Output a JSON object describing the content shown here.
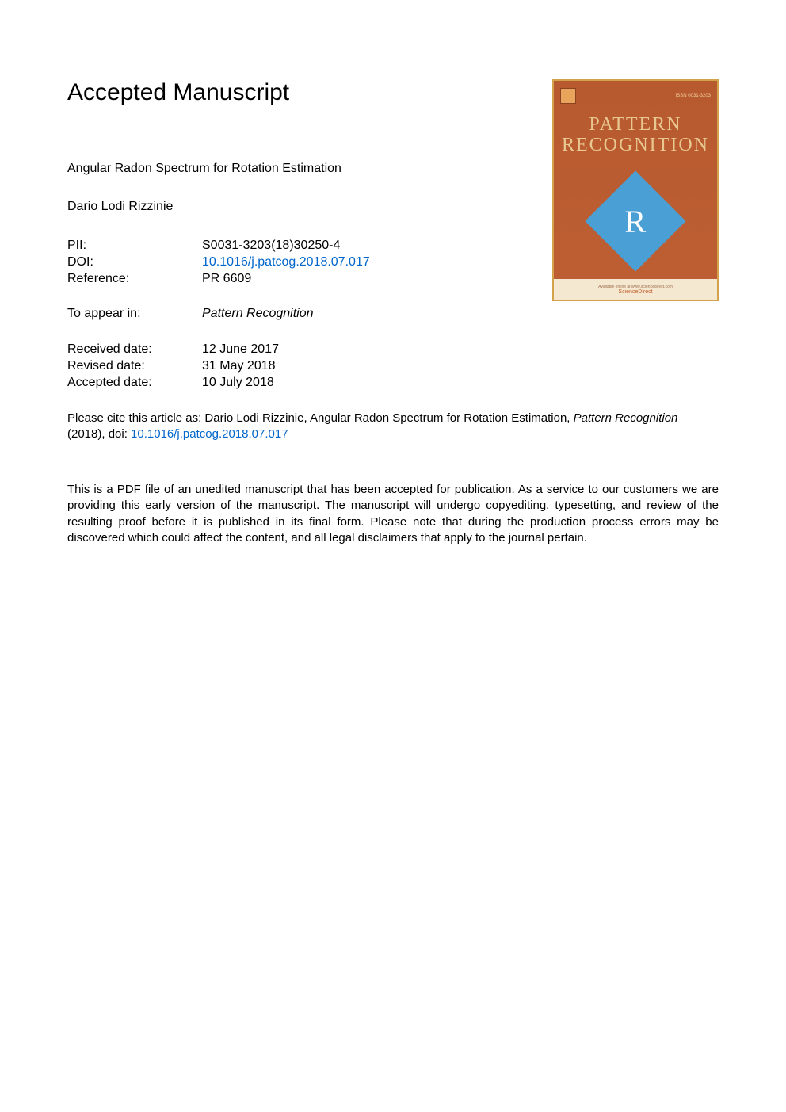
{
  "heading": "Accepted Manuscript",
  "article_title": "Angular Radon Spectrum for Rotation Estimation",
  "author": "Dario Lodi Rizzinie",
  "metadata": {
    "pii_label": "PII:",
    "pii_value": "S0031-3203(18)30250-4",
    "doi_label": "DOI:",
    "doi_value": "10.1016/j.patcog.2018.07.017",
    "reference_label": "Reference:",
    "reference_value": "PR 6609",
    "appear_label": "To appear in:",
    "appear_value": "Pattern Recognition",
    "received_label": "Received date:",
    "received_value": "12 June 2017",
    "revised_label": "Revised date:",
    "revised_value": "31 May 2018",
    "accepted_label": "Accepted date:",
    "accepted_value": "10 July 2018"
  },
  "citation": {
    "prefix": "Please cite this article as: Dario Lodi Rizzinie, Angular Radon Spectrum for Rotation Estimation, ",
    "journal": "Pattern Recognition",
    "year": " (2018), doi: ",
    "doi_link": "10.1016/j.patcog.2018.07.017"
  },
  "disclaimer": "This is a PDF file of an unedited manuscript that has been accepted for publication. As a service to our customers we are providing this early version of the manuscript. The manuscript will undergo copyediting, typesetting, and review of the resulting proof before it is published in its final form. Please note that during the production process errors may be discovered which could affect the content, and all legal disclaimers that apply to the journal pertain.",
  "cover": {
    "title_line1": "PATTERN",
    "title_line2": "RECOGNITION",
    "issn": "ISSN 0031-3203",
    "letter": "R",
    "available": "Available online at www.sciencedirect.com",
    "sciencedirect": "ScienceDirect",
    "colors": {
      "border": "#d4a24a",
      "background": "#bd5f33",
      "title_text": "#e8c790",
      "diamond": "#4a9fd4",
      "bottom_bg": "#f5e8d0"
    }
  },
  "colors": {
    "link": "#0066cc",
    "text": "#000000",
    "background": "#ffffff"
  }
}
